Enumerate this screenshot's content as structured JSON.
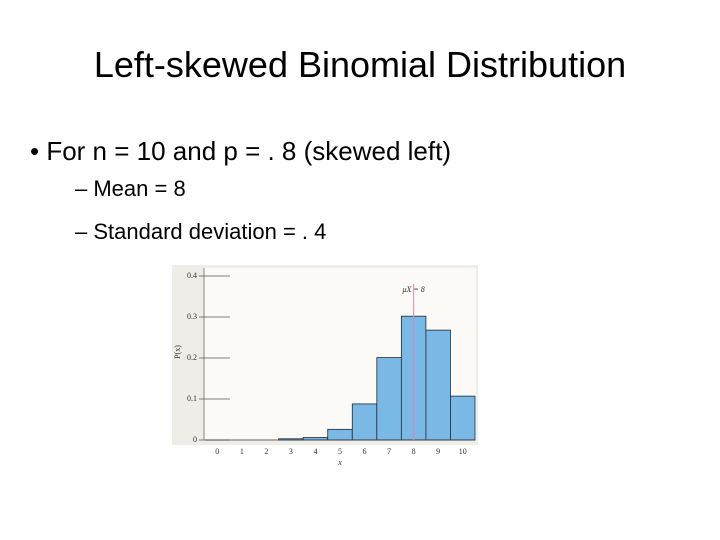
{
  "slide": {
    "title": "Left-skewed Binomial Distribution",
    "bullets": [
      {
        "text": "For n = 10 and p = . 8 (skewed left)",
        "sub": [
          "Mean = 8",
          "Standard deviation = . 4"
        ]
      }
    ]
  },
  "chart_data": {
    "type": "bar",
    "x_label": "x",
    "y_label": "P(x)",
    "categories": [
      "0",
      "1",
      "2",
      "3",
      "4",
      "5",
      "6",
      "7",
      "8",
      "9",
      "10"
    ],
    "values": [
      0,
      0,
      0,
      0.003,
      0.006,
      0.026,
      0.088,
      0.201,
      0.302,
      0.268,
      0.107
    ],
    "color": "#7ab8e6",
    "ylim": [
      0,
      0.4
    ],
    "yticks": [
      0,
      0.1,
      0.2,
      0.3,
      0.4
    ],
    "mean_line": {
      "category_index": 8,
      "label": "μX = 8",
      "color": "#d98ab0"
    }
  }
}
